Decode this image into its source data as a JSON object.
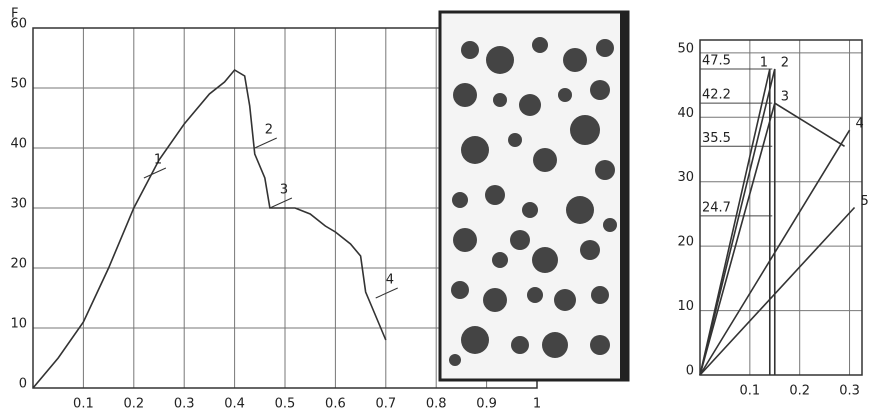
{
  "chart_data": [
    {
      "type": "line",
      "y_label": "F",
      "x": [
        0,
        0.05,
        0.1,
        0.15,
        0.2,
        0.25,
        0.3,
        0.35,
        0.38,
        0.4,
        0.42,
        0.43,
        0.44,
        0.46,
        0.47,
        0.48,
        0.52,
        0.55,
        0.58,
        0.6,
        0.63,
        0.65,
        0.66,
        0.67,
        0.69,
        0.7
      ],
      "series": [
        {
          "color": "#333333",
          "values": [
            0,
            5,
            11,
            20,
            30,
            38,
            44,
            49,
            51,
            53,
            52,
            47,
            39,
            35,
            30,
            30,
            30,
            29,
            27,
            26,
            24,
            22,
            16,
            14,
            10,
            8
          ]
        }
      ],
      "point_labels": [
        {
          "label": "1",
          "x": 0.22,
          "y": 35
        },
        {
          "label": "2",
          "x": 0.44,
          "y": 40
        },
        {
          "label": "3",
          "x": 0.47,
          "y": 30
        },
        {
          "label": "4",
          "x": 0.68,
          "y": 15
        }
      ],
      "xlim": [
        0,
        1.0
      ],
      "ylim": [
        0,
        60
      ],
      "xticks": [
        0.1,
        0.2,
        0.3,
        0.4,
        0.5,
        0.6,
        0.7,
        0.8,
        0.9,
        1.0
      ],
      "yticks": [
        0,
        10,
        20,
        30,
        40,
        50,
        60
      ],
      "grid": true
    },
    {
      "type": "line",
      "series": [
        {
          "name": "1",
          "color": "#333333",
          "x": [
            0,
            0.14,
            0.14
          ],
          "values": [
            0,
            47.5,
            0
          ]
        },
        {
          "name": "2",
          "color": "#333333",
          "x": [
            0,
            0.15,
            0.15
          ],
          "values": [
            0,
            47.5,
            0
          ]
        },
        {
          "name": "3",
          "color": "#333333",
          "x": [
            0,
            0.15,
            0.29
          ],
          "values": [
            0,
            42.2,
            35.5
          ]
        },
        {
          "name": "4",
          "color": "#333333",
          "x": [
            0,
            0.3
          ],
          "values": [
            0,
            38
          ]
        },
        {
          "name": "5",
          "color": "#333333",
          "x": [
            0,
            0.31
          ],
          "values": [
            0,
            26
          ]
        }
      ],
      "reference_levels": [
        47.5,
        42.2,
        35.5,
        24.7
      ],
      "xlim": [
        0,
        0.325
      ],
      "ylim": [
        0,
        52
      ],
      "xticks": [
        0.1,
        0.2,
        0.3
      ],
      "yticks": [
        0,
        10,
        20,
        30,
        40,
        50
      ],
      "grid": true
    }
  ]
}
